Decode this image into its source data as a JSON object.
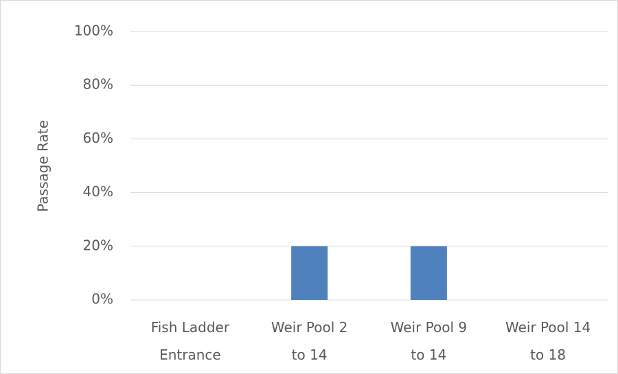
{
  "chart_data": {
    "type": "bar",
    "categories": [
      "Fish Ladder Entrance",
      "Weir Pool 2 to 14",
      "Weir Pool 9 to 14",
      "Weir Pool 14 to 18"
    ],
    "values": [
      0,
      20,
      20,
      0
    ],
    "color": "#4f81bd",
    "y_label": "Passage Rate",
    "ylim": [
      0,
      100
    ],
    "yticks": [
      {
        "value": 0,
        "label": "0%"
      },
      {
        "value": 20,
        "label": "20%"
      },
      {
        "value": 40,
        "label": "40%"
      },
      {
        "value": 60,
        "label": "60%"
      },
      {
        "value": 80,
        "label": "80%"
      },
      {
        "value": 100,
        "label": "100%"
      }
    ],
    "grid": true
  }
}
